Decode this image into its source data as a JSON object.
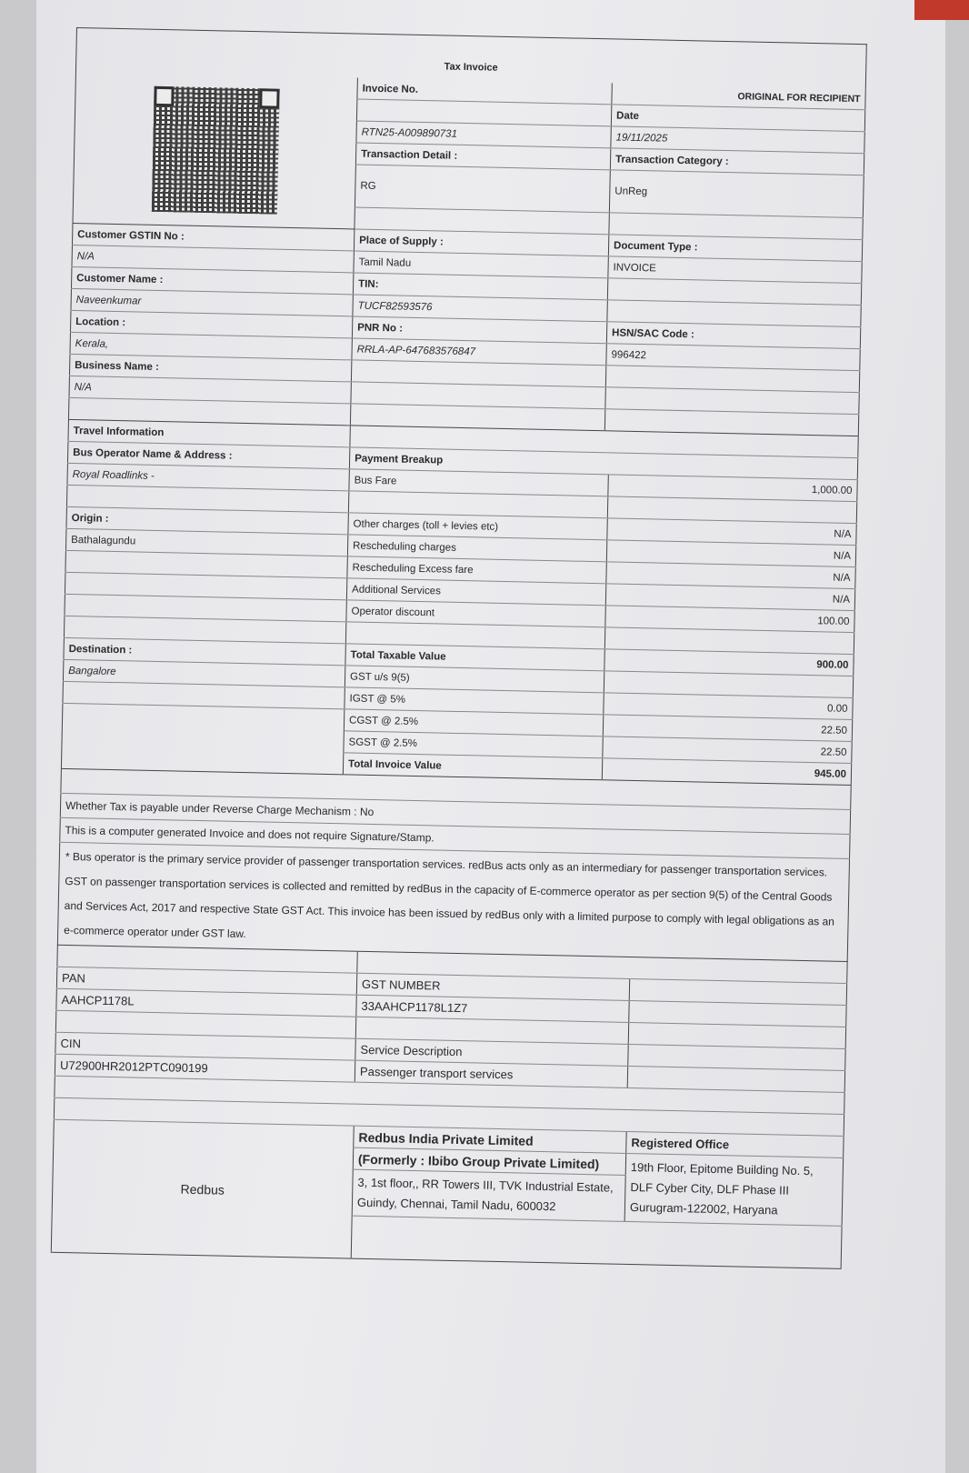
{
  "title": "Tax Invoice",
  "copy_label": "ORIGINAL FOR RECIPIENT",
  "header": {
    "invoice_no_label": "Invoice No.",
    "invoice_no": "RTN25-A009890731",
    "date_label": "Date",
    "date": "19/11/2025",
    "transaction_detail_label": "Transaction Detail :",
    "transaction_detail": "RG",
    "transaction_category_label": "Transaction Category :",
    "transaction_category": "UnReg",
    "customer_gstin_label": "Customer GSTIN No :",
    "customer_gstin": "N/A",
    "customer_name_label": "Customer Name :",
    "customer_name": "Naveenkumar",
    "location_label": "Location :",
    "location": "Kerala,",
    "business_name_label": "Business Name :",
    "business_name": "N/A",
    "place_of_supply_label": "Place of Supply :",
    "place_of_supply": "Tamil Nadu",
    "tin_label": "TIN:",
    "tin": "TUCF82593576",
    "pnr_label": "PNR No :",
    "pnr": "RRLA-AP-647683576847",
    "document_type_label": "Document Type :",
    "document_type": "INVOICE",
    "hsn_label": "HSN/SAC Code :",
    "hsn": "996422"
  },
  "travel": {
    "section_label": "Travel Information",
    "operator_label": "Bus Operator Name & Address :",
    "operator": "Royal Roadlinks -",
    "origin_label": "Origin :",
    "origin": "Bathalagundu",
    "destination_label": "Destination :",
    "destination": "Bangalore"
  },
  "payment": {
    "section_label": "Payment Breakup",
    "rows": [
      {
        "label": "Bus Fare",
        "value": "1,000.00"
      },
      {
        "label": "Other charges (toll + levies etc)",
        "value": "N/A"
      },
      {
        "label": "Rescheduling charges",
        "value": "N/A"
      },
      {
        "label": "Rescheduling Excess fare",
        "value": "N/A"
      },
      {
        "label": "Additional Services",
        "value": "N/A"
      },
      {
        "label": "Operator discount",
        "value": "100.00"
      },
      {
        "label": "Total Taxable Value",
        "value": "900.00"
      },
      {
        "label": "GST u/s 9(5)",
        "value": ""
      },
      {
        "label": "IGST @ 5%",
        "value": "0.00"
      },
      {
        "label": "CGST @ 2.5%",
        "value": "22.50"
      },
      {
        "label": "SGST @ 2.5%",
        "value": "22.50"
      },
      {
        "label": "Total Invoice Value",
        "value": "945.00"
      }
    ]
  },
  "notes": {
    "reverse_charge": "Whether Tax is payable under Reverse Charge Mechanism : No",
    "computer_generated": "This is a computer generated Invoice and does not require Signature/Stamp.",
    "disclaimer": "* Bus operator is the primary service provider of passenger transportation services. redBus acts only as an intermediary for passenger transportation services. GST on passenger transportation services is collected and remitted by redBus in the capacity of E-commerce operator as per section 9(5) of the Central Goods and Services Act, 2017 and respective State GST Act. This invoice has been issued by redBus only with a limited purpose to comply with legal obligations as an e-commerce operator under GST law."
  },
  "company": {
    "pan_label": "PAN",
    "pan": "AAHCP1178L",
    "cin_label": "CIN",
    "cin": "U72900HR2012PTC090199",
    "gst_label": "GST NUMBER",
    "gst": "33AAHCP1178L1Z7",
    "service_desc_label": "Service Description",
    "service_desc": "Passenger transport services",
    "brand": "Redbus",
    "name": "Redbus India Private Limited",
    "formerly": "(Formerly : Ibibo Group Private Limited)",
    "address": "3, 1st floor,, RR Towers III, TVK Industrial Estate, Guindy, Chennai, Tamil Nadu, 600032",
    "reg_office_label": "Registered Office",
    "reg_office": "19th Floor, Epitome Building No. 5, DLF Cyber City, DLF Phase III Gurugram-122002, Haryana"
  }
}
